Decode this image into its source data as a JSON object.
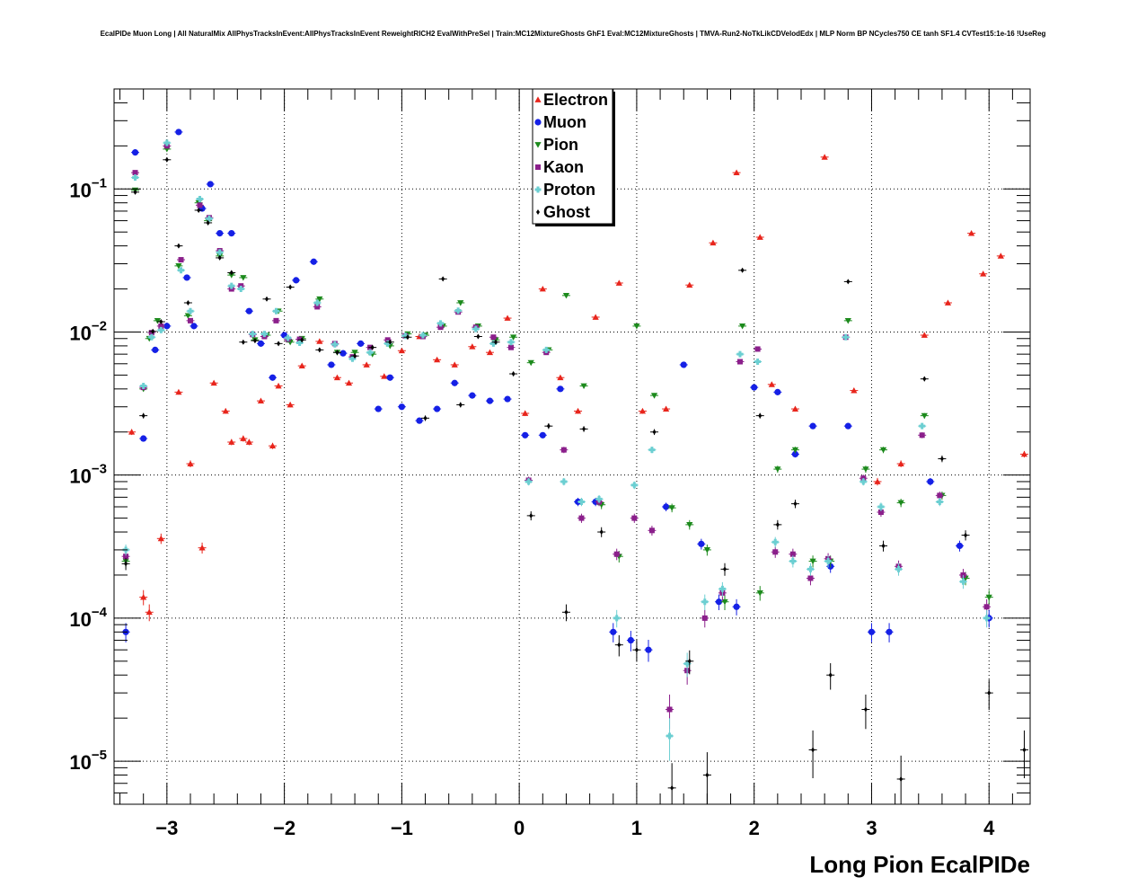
{
  "title": "EcalPIDe Muon Long | All NaturalMix AllPhysTracksInEvent:AllPhysTracksInEvent ReweightRICH2 EvalWithPreSel | Train:MC12MixtureGhosts GhF1 Eval:MC12MixtureGhosts | TMVA-Run2-NoTkLikCDVelodEdx | MLP Norm BP NCycles750 CE tanh SF1.4 CVTest15:1e-16 !UseReg",
  "chart_data": {
    "type": "scatter",
    "xlabel": "Long Pion EcalPIDe",
    "ylabel": "",
    "xlim": [
      -3.45,
      4.35
    ],
    "ylim": [
      5e-06,
      0.5
    ],
    "yscale": "log",
    "grid": true,
    "legend_position": "top-center",
    "x_ticks": [
      {
        "value": -3,
        "label": "−3"
      },
      {
        "value": -2,
        "label": "−2"
      },
      {
        "value": -1,
        "label": "−1"
      },
      {
        "value": 0,
        "label": "0"
      },
      {
        "value": 1,
        "label": "1"
      },
      {
        "value": 2,
        "label": "2"
      },
      {
        "value": 3,
        "label": "3"
      },
      {
        "value": 4,
        "label": "4"
      }
    ],
    "y_ticks": [
      {
        "value": 1e-05,
        "base": "10",
        "exp": "−5"
      },
      {
        "value": 0.0001,
        "base": "10",
        "exp": "−4"
      },
      {
        "value": 0.001,
        "base": "10",
        "exp": "−3"
      },
      {
        "value": 0.01,
        "base": "10",
        "exp": "−2"
      },
      {
        "value": 0.1,
        "base": "10",
        "exp": "−1"
      }
    ],
    "series": [
      {
        "name": "Electron",
        "color": "#e8251c",
        "marker": "triangle-up",
        "x": [
          -3.3,
          -3.2,
          -3.15,
          -3.05,
          -2.9,
          -2.8,
          -2.7,
          -2.6,
          -2.5,
          -2.45,
          -2.35,
          -2.3,
          -2.2,
          -2.1,
          -2.05,
          -1.95,
          -1.85,
          -1.7,
          -1.55,
          -1.45,
          -1.3,
          -1.15,
          -1.0,
          -0.85,
          -0.7,
          -0.55,
          -0.4,
          -0.25,
          -0.1,
          0.05,
          0.2,
          0.35,
          0.5,
          0.65,
          0.85,
          1.05,
          1.25,
          1.45,
          1.65,
          1.85,
          2.05,
          2.15,
          2.35,
          2.6,
          2.85,
          3.05,
          3.25,
          3.45,
          3.65,
          3.85,
          3.95,
          4.1,
          4.3
        ],
        "y": [
          0.002,
          0.00014,
          0.00011,
          0.00036,
          0.0038,
          0.0012,
          0.00031,
          0.0044,
          0.0028,
          0.0017,
          0.0018,
          0.0017,
          0.0033,
          0.0016,
          0.0042,
          0.0031,
          0.0058,
          0.0086,
          0.0048,
          0.0044,
          0.0059,
          0.0049,
          0.0074,
          0.0093,
          0.0064,
          0.0059,
          0.0079,
          0.0072,
          0.0125,
          0.0027,
          0.02,
          0.0048,
          0.0028,
          0.0127,
          0.022,
          0.0028,
          0.0029,
          0.0213,
          0.042,
          0.13,
          0.046,
          0.0043,
          0.0029,
          0.167,
          0.0039,
          0.0009,
          0.0012,
          0.0095,
          0.016,
          0.049,
          0.0255,
          0.034,
          0.0014
        ]
      },
      {
        "name": "Muon",
        "color": "#1520e6",
        "marker": "circle",
        "x": [
          -3.35,
          -3.27,
          -3.2,
          -3.1,
          -3.0,
          -2.9,
          -2.83,
          -2.77,
          -2.7,
          -2.63,
          -2.55,
          -2.45,
          -2.3,
          -2.2,
          -2.1,
          -2.0,
          -1.9,
          -1.75,
          -1.6,
          -1.5,
          -1.35,
          -1.2,
          -1.1,
          -1.0,
          -0.85,
          -0.7,
          -0.55,
          -0.4,
          -0.25,
          -0.1,
          0.05,
          0.2,
          0.35,
          0.5,
          0.65,
          0.8,
          0.95,
          1.1,
          1.25,
          1.4,
          1.55,
          1.7,
          1.85,
          2.0,
          2.2,
          2.35,
          2.5,
          2.65,
          2.8,
          3.0,
          3.15,
          3.5,
          3.75,
          4.0
        ],
        "y": [
          8e-05,
          0.18,
          0.0018,
          0.0075,
          0.011,
          0.25,
          0.024,
          0.011,
          0.073,
          0.108,
          0.049,
          0.049,
          0.014,
          0.0083,
          0.0048,
          0.0095,
          0.023,
          0.031,
          0.0059,
          0.0071,
          0.0083,
          0.0029,
          0.0048,
          0.003,
          0.0024,
          0.0029,
          0.0044,
          0.0036,
          0.0033,
          0.0034,
          0.0019,
          0.0019,
          0.004,
          0.00065,
          0.00065,
          8e-05,
          7e-05,
          6e-05,
          0.0006,
          0.0059,
          0.00033,
          0.00013,
          0.00012,
          0.0041,
          0.0038,
          0.0014,
          0.0022,
          0.00023,
          0.0022,
          8e-05,
          8e-05,
          0.0009,
          0.00032,
          0.0001
        ]
      },
      {
        "name": "Pion",
        "color": "#1c8a1c",
        "marker": "triangle-down",
        "x": [
          -3.35,
          -3.27,
          -3.2,
          -3.15,
          -3.08,
          -3.0,
          -2.9,
          -2.82,
          -2.73,
          -2.65,
          -2.55,
          -2.45,
          -2.35,
          -2.25,
          -2.15,
          -2.05,
          -1.95,
          -1.85,
          -1.7,
          -1.55,
          -1.4,
          -1.25,
          -1.1,
          -0.95,
          -0.8,
          -0.65,
          -0.5,
          -0.35,
          -0.2,
          -0.05,
          0.1,
          0.25,
          0.4,
          0.55,
          0.7,
          0.85,
          1.0,
          1.15,
          1.3,
          1.45,
          1.6,
          1.75,
          1.9,
          2.05,
          2.2,
          2.35,
          2.5,
          2.65,
          2.8,
          2.95,
          3.1,
          3.25,
          3.45,
          3.6,
          3.8,
          4.0
        ],
        "y": [
          0.00025,
          0.098,
          0.004,
          0.009,
          0.012,
          0.19,
          0.029,
          0.013,
          0.08,
          0.06,
          0.034,
          0.025,
          0.024,
          0.0088,
          0.0095,
          0.014,
          0.0085,
          0.009,
          0.017,
          0.0072,
          0.0072,
          0.007,
          0.008,
          0.0097,
          0.0095,
          0.011,
          0.016,
          0.011,
          0.0088,
          0.0092,
          0.0061,
          0.0075,
          0.018,
          0.0042,
          0.00062,
          0.00027,
          0.011,
          0.0036,
          0.00059,
          0.00045,
          0.0003,
          0.00013,
          0.011,
          0.00015,
          0.0011,
          0.0015,
          0.00025,
          0.00025,
          0.012,
          0.0011,
          0.0015,
          0.00064,
          0.0026,
          0.00072,
          0.00019,
          0.00014
        ]
      },
      {
        "name": "Kaon",
        "color": "#8b1f8b",
        "marker": "square",
        "x": [
          -3.35,
          -3.27,
          -3.2,
          -3.13,
          -3.05,
          -3.0,
          -2.88,
          -2.8,
          -2.72,
          -2.64,
          -2.55,
          -2.45,
          -2.37,
          -2.27,
          -2.17,
          -2.07,
          -1.97,
          -1.87,
          -1.72,
          -1.57,
          -1.42,
          -1.27,
          -1.12,
          -0.97,
          -0.82,
          -0.67,
          -0.52,
          -0.37,
          -0.22,
          -0.07,
          0.08,
          0.23,
          0.38,
          0.53,
          0.68,
          0.83,
          0.98,
          1.13,
          1.28,
          1.43,
          1.58,
          1.73,
          1.88,
          2.03,
          2.18,
          2.33,
          2.48,
          2.63,
          2.78,
          2.93,
          3.08,
          3.23,
          3.43,
          3.58,
          3.78,
          3.98
        ],
        "y": [
          0.00027,
          0.13,
          0.0041,
          0.0099,
          0.011,
          0.2,
          0.032,
          0.012,
          0.077,
          0.063,
          0.037,
          0.02,
          0.021,
          0.0096,
          0.0093,
          0.012,
          0.0089,
          0.0089,
          0.015,
          0.0083,
          0.0067,
          0.0078,
          0.0088,
          0.0094,
          0.0093,
          0.0108,
          0.0138,
          0.0108,
          0.0092,
          0.0078,
          0.00092,
          0.0072,
          0.0015,
          0.0005,
          0.00065,
          0.00028,
          0.0005,
          0.00041,
          2.3e-05,
          4.3e-05,
          0.0001,
          0.00015,
          0.0062,
          0.0076,
          0.00029,
          0.00028,
          0.00019,
          0.00026,
          0.0092,
          0.00095,
          0.00055,
          0.00023,
          0.0019,
          0.00072,
          0.0002,
          0.00012
        ]
      },
      {
        "name": "Proton",
        "color": "#6ccfd2",
        "marker": "cross",
        "x": [
          -3.35,
          -3.27,
          -3.2,
          -3.13,
          -3.05,
          -3.0,
          -2.88,
          -2.8,
          -2.72,
          -2.64,
          -2.55,
          -2.45,
          -2.37,
          -2.27,
          -2.17,
          -2.07,
          -1.97,
          -1.87,
          -1.72,
          -1.57,
          -1.42,
          -1.27,
          -1.12,
          -0.97,
          -0.82,
          -0.67,
          -0.52,
          -0.37,
          -0.22,
          -0.07,
          0.08,
          0.23,
          0.38,
          0.53,
          0.68,
          0.83,
          0.98,
          1.13,
          1.28,
          1.43,
          1.58,
          1.73,
          1.88,
          2.03,
          2.18,
          2.33,
          2.48,
          2.63,
          2.78,
          2.93,
          3.08,
          3.23,
          3.43,
          3.58,
          3.78,
          3.98
        ],
        "y": [
          0.0003,
          0.12,
          0.0042,
          0.0092,
          0.0103,
          0.21,
          0.027,
          0.014,
          0.085,
          0.062,
          0.036,
          0.021,
          0.02,
          0.0097,
          0.0097,
          0.014,
          0.0091,
          0.0084,
          0.016,
          0.0082,
          0.0065,
          0.0072,
          0.0083,
          0.0094,
          0.0095,
          0.0115,
          0.0141,
          0.0105,
          0.0083,
          0.0085,
          0.0009,
          0.0075,
          0.0009,
          0.00065,
          0.00068,
          0.0001,
          0.00085,
          0.0015,
          1.5e-05,
          4.8e-05,
          0.00013,
          0.00016,
          0.007,
          0.0062,
          0.00034,
          0.00025,
          0.00022,
          0.00025,
          0.0092,
          0.0009,
          0.0006,
          0.00022,
          0.0022,
          0.00065,
          0.00018,
          0.0001
        ]
      },
      {
        "name": "Ghost",
        "color": "#000000",
        "marker": "diamond",
        "x": [
          -3.35,
          -3.27,
          -3.2,
          -3.12,
          -3.05,
          -3.0,
          -2.9,
          -2.82,
          -2.73,
          -2.65,
          -2.55,
          -2.45,
          -2.35,
          -2.25,
          -2.15,
          -2.05,
          -1.95,
          -1.85,
          -1.7,
          -1.55,
          -1.4,
          -1.25,
          -1.1,
          -0.95,
          -0.8,
          -0.65,
          -0.5,
          -0.35,
          -0.2,
          -0.05,
          0.1,
          0.25,
          0.4,
          0.55,
          0.7,
          0.85,
          1.0,
          1.15,
          1.3,
          1.45,
          1.6,
          1.75,
          1.9,
          2.05,
          2.2,
          2.35,
          2.5,
          2.65,
          2.8,
          2.95,
          3.1,
          3.25,
          3.45,
          3.6,
          3.8,
          4.0,
          4.3
        ],
        "y": [
          0.00024,
          0.095,
          0.0026,
          0.0101,
          0.0118,
          0.16,
          0.04,
          0.016,
          0.071,
          0.058,
          0.033,
          0.026,
          0.0085,
          0.0087,
          0.017,
          0.0083,
          0.0206,
          0.0088,
          0.0075,
          0.0072,
          0.0068,
          0.0078,
          0.0085,
          0.0092,
          0.0025,
          0.0235,
          0.0031,
          0.0093,
          0.0085,
          0.0051,
          0.00052,
          0.0022,
          0.00011,
          0.0021,
          0.0004,
          6.5e-05,
          6e-05,
          0.002,
          6.5e-06,
          5e-05,
          8e-06,
          0.00022,
          0.027,
          0.0026,
          0.00045,
          0.00063,
          1.2e-05,
          4e-05,
          0.0225,
          2.3e-05,
          0.00032,
          7.5e-06,
          0.0047,
          0.0013,
          0.00038,
          3e-05,
          1.2e-05
        ]
      }
    ]
  }
}
